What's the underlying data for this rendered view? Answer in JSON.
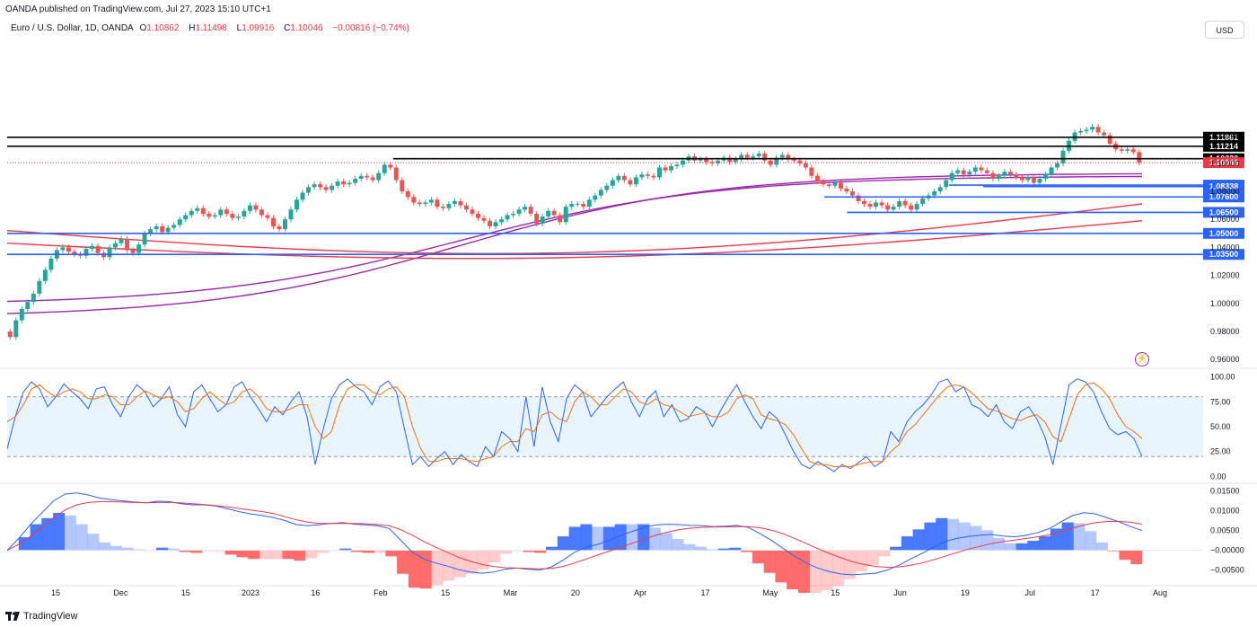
{
  "header": {
    "published": "OANDA published on TradingView.com, Jul 27, 2023 15:10 UTC+1"
  },
  "symbol": {
    "title": "Euro / U.S. Dollar, 1D, OANDA",
    "open_label": "O",
    "open": "1.10862",
    "high_label": "H",
    "high": "1.11498",
    "low_label": "L",
    "low": "1.09916",
    "close_label": "C",
    "close": "1.10046",
    "change": "−0.00816 (−0.74%)"
  },
  "currency_button": "USD",
  "footer": {
    "brand": "TradingView"
  },
  "colors": {
    "up": "#26a69a",
    "down": "#ef5350",
    "level_black": "#000000",
    "level_blue": "#2962ff",
    "ma_purple": "#9c27b0",
    "ma_red": "#f23645",
    "k_line": "#2962ff",
    "d_line": "#ff6d00",
    "hist_blue": "#2962ff",
    "hist_red": "#ff5252"
  },
  "chart_data": [
    {
      "type": "line",
      "name": "price",
      "ylim": [
        0.955,
        1.205
      ],
      "y_ticks": [
        "0.96000",
        "0.98000",
        "1.00000",
        "1.02000",
        "1.04000",
        "1.06000",
        "1.08000",
        "1.10000",
        "1.12000"
      ],
      "x_ticks": [
        "15",
        "Dec",
        "15",
        "2023",
        "16",
        "Feb",
        "15",
        "Mar",
        "20",
        "Apr",
        "17",
        "May",
        "15",
        "Jun",
        "19",
        "Jul",
        "17",
        "Aug"
      ],
      "close": [
        0.976,
        0.988,
        0.996,
        1.001,
        1.007,
        1.016,
        1.024,
        1.032,
        1.038,
        1.04,
        1.037,
        1.035,
        1.034,
        1.039,
        1.041,
        1.036,
        1.033,
        1.04,
        1.043,
        1.046,
        1.038,
        1.036,
        1.042,
        1.05,
        1.053,
        1.055,
        1.051,
        1.054,
        1.056,
        1.06,
        1.063,
        1.066,
        1.068,
        1.064,
        1.062,
        1.063,
        1.067,
        1.064,
        1.061,
        1.062,
        1.066,
        1.07,
        1.067,
        1.063,
        1.061,
        1.055,
        1.053,
        1.06,
        1.067,
        1.074,
        1.079,
        1.083,
        1.085,
        1.083,
        1.081,
        1.084,
        1.087,
        1.085,
        1.086,
        1.089,
        1.091,
        1.09,
        1.088,
        1.093,
        1.099,
        1.097,
        1.088,
        1.08,
        1.076,
        1.072,
        1.071,
        1.072,
        1.074,
        1.069,
        1.068,
        1.071,
        1.073,
        1.07,
        1.067,
        1.064,
        1.061,
        1.059,
        1.055,
        1.058,
        1.06,
        1.063,
        1.064,
        1.067,
        1.069,
        1.064,
        1.057,
        1.062,
        1.066,
        1.063,
        1.058,
        1.069,
        1.071,
        1.071,
        1.069,
        1.074,
        1.077,
        1.081,
        1.084,
        1.088,
        1.091,
        1.088,
        1.085,
        1.09,
        1.092,
        1.091,
        1.09,
        1.097,
        1.095,
        1.098,
        1.099,
        1.102,
        1.105,
        1.102,
        1.103,
        1.101,
        1.1,
        1.102,
        1.104,
        1.101,
        1.103,
        1.106,
        1.104,
        1.105,
        1.107,
        1.102,
        1.099,
        1.104,
        1.106,
        1.103,
        1.102,
        1.1,
        1.097,
        1.091,
        1.087,
        1.085,
        1.084,
        1.086,
        1.082,
        1.08,
        1.077,
        1.073,
        1.071,
        1.069,
        1.072,
        1.07,
        1.067,
        1.069,
        1.073,
        1.07,
        1.067,
        1.071,
        1.075,
        1.077,
        1.08,
        1.083,
        1.088,
        1.093,
        1.095,
        1.092,
        1.094,
        1.097,
        1.095,
        1.093,
        1.089,
        1.091,
        1.094,
        1.092,
        1.09,
        1.088,
        1.09,
        1.086,
        1.089,
        1.092,
        1.097,
        1.1,
        1.109,
        1.116,
        1.122,
        1.123,
        1.124,
        1.126,
        1.122,
        1.12,
        1.114,
        1.11,
        1.109,
        1.11,
        1.108,
        1.1005
      ],
      "moving_averages": [
        {
          "color": "#9c27b0",
          "start": 0.99,
          "end": 1.093,
          "shape": "rise"
        },
        {
          "color": "#9c27b0",
          "start": 0.999,
          "end": 1.091,
          "shape": "rise"
        },
        {
          "color": "#f23645",
          "start": 1.052,
          "end": 1.071,
          "shape": "dip"
        },
        {
          "color": "#f23645",
          "start": 1.043,
          "end": 1.059,
          "shape": "dip"
        }
      ],
      "levels": [
        {
          "value": 1.11861,
          "label": "1.11861",
          "color": "#000000",
          "from": 0.0
        },
        {
          "value": 1.11214,
          "label": "1.11214",
          "color": "#000000",
          "from": 0.0
        },
        {
          "value": 1.1033,
          "label": "1.10330",
          "color": "#000000",
          "from": 0.34
        },
        {
          "value": 1.10046,
          "label": "1.10046",
          "color": "#f23645",
          "from": 0.0,
          "dotted": true
        },
        {
          "value": 1.08444,
          "label": "1.08444",
          "color": "#2962ff",
          "from": 0.83
        },
        {
          "value": 1.08338,
          "label": "1.08338",
          "color": "#2962ff",
          "from": 0.86
        },
        {
          "value": 1.076,
          "label": "1.07600",
          "color": "#2962ff",
          "from": 0.72
        },
        {
          "value": 1.065,
          "label": "1.06500",
          "color": "#2962ff",
          "from": 0.74
        },
        {
          "value": 1.05,
          "label": "1.05000",
          "color": "#2962ff",
          "from": 0.0
        },
        {
          "value": 1.035,
          "label": "1.03500",
          "color": "#2962ff",
          "from": 0.0
        }
      ]
    },
    {
      "type": "line",
      "name": "stochastic",
      "ylim": [
        -5,
        105
      ],
      "y_ticks": [
        "100.00",
        "75.00",
        "50.00",
        "25.00",
        "0.00"
      ],
      "bands": [
        80,
        20
      ],
      "k": [
        28,
        60,
        85,
        95,
        88,
        70,
        80,
        93,
        85,
        78,
        68,
        88,
        90,
        72,
        60,
        80,
        92,
        85,
        70,
        78,
        90,
        62,
        50,
        85,
        92,
        78,
        65,
        72,
        90,
        95,
        80,
        68,
        55,
        70,
        62,
        75,
        85,
        60,
        12,
        48,
        78,
        92,
        98,
        90,
        85,
        72,
        90,
        96,
        85,
        48,
        12,
        20,
        10,
        18,
        25,
        12,
        22,
        15,
        10,
        30,
        20,
        45,
        38,
        25,
        80,
        30,
        90,
        55,
        35,
        78,
        92,
        85,
        60,
        70,
        80,
        88,
        95,
        75,
        60,
        78,
        86,
        60,
        72,
        55,
        58,
        70,
        65,
        50,
        66,
        80,
        92,
        75,
        60,
        48,
        65,
        58,
        42,
        25,
        12,
        8,
        15,
        10,
        5,
        12,
        8,
        14,
        20,
        10,
        15,
        45,
        35,
        55,
        65,
        72,
        82,
        95,
        98,
        85,
        90,
        72,
        68,
        60,
        72,
        55,
        48,
        65,
        70,
        58,
        40,
        12,
        52,
        92,
        98,
        95,
        85,
        65,
        48,
        42,
        45,
        38,
        20
      ],
      "d": [
        55,
        60,
        72,
        88,
        92,
        85,
        80,
        85,
        88,
        85,
        78,
        78,
        82,
        80,
        72,
        72,
        80,
        86,
        82,
        78,
        80,
        75,
        65,
        68,
        78,
        85,
        78,
        72,
        75,
        85,
        88,
        80,
        68,
        65,
        65,
        68,
        72,
        72,
        50,
        38,
        45,
        72,
        88,
        92,
        92,
        85,
        82,
        88,
        90,
        80,
        50,
        28,
        15,
        15,
        18,
        18,
        18,
        16,
        15,
        18,
        20,
        30,
        35,
        35,
        48,
        45,
        62,
        65,
        58,
        55,
        75,
        85,
        80,
        72,
        72,
        80,
        88,
        85,
        75,
        72,
        78,
        72,
        70,
        65,
        60,
        62,
        64,
        60,
        60,
        65,
        78,
        82,
        78,
        62,
        58,
        56,
        52,
        42,
        28,
        15,
        12,
        12,
        10,
        10,
        10,
        12,
        14,
        15,
        15,
        25,
        32,
        45,
        52,
        62,
        72,
        82,
        90,
        92,
        90,
        84,
        76,
        68,
        66,
        62,
        58,
        56,
        60,
        62,
        55,
        40,
        35,
        58,
        82,
        92,
        94,
        88,
        78,
        62,
        50,
        45,
        38
      ]
    },
    {
      "type": "line",
      "name": "macd",
      "ylim": [
        -0.0085,
        0.0165
      ],
      "y_ticks": [
        "0.01500",
        "0.01000",
        "0.00500",
        "−0.00000",
        "−0.00500"
      ],
      "macd": [
        0.0,
        0.003,
        0.0065,
        0.0095,
        0.0125,
        0.0142,
        0.0145,
        0.014,
        0.0132,
        0.0128,
        0.0125,
        0.0122,
        0.012,
        0.0124,
        0.0123,
        0.0118,
        0.0115,
        0.0115,
        0.0112,
        0.0105,
        0.0098,
        0.0092,
        0.0088,
        0.0083,
        0.0075,
        0.0065,
        0.0062,
        0.0065,
        0.0068,
        0.007,
        0.0066,
        0.0064,
        0.0062,
        0.0055,
        0.0025,
        -0.0005,
        -0.0022,
        -0.0032,
        -0.004,
        -0.0049,
        -0.0055,
        -0.0058,
        -0.0055,
        -0.0048,
        -0.0045,
        -0.0048,
        -0.005,
        -0.0042,
        -0.0025,
        -0.0005,
        0.0008,
        0.0015,
        0.0025,
        0.0038,
        0.0048,
        0.0058,
        0.0064,
        0.0066,
        0.0065,
        0.0063,
        0.0062,
        0.006,
        0.0061,
        0.0063,
        0.0058,
        0.0042,
        0.0025,
        0.0005,
        -0.0015,
        -0.0032,
        -0.0045,
        -0.0054,
        -0.006,
        -0.0062,
        -0.006,
        -0.0058,
        -0.005,
        -0.0038,
        -0.0022,
        -0.0008,
        0.0008,
        0.0022,
        0.003,
        0.0035,
        0.0038,
        0.004,
        0.0036,
        0.0034,
        0.0038,
        0.0045,
        0.0055,
        0.0072,
        0.0088,
        0.0095,
        0.0092,
        0.0082,
        0.0072,
        0.006,
        0.005
      ],
      "signal": [
        0.0,
        0.0015,
        0.0035,
        0.0058,
        0.0082,
        0.0102,
        0.0115,
        0.0121,
        0.0123,
        0.0123,
        0.0122,
        0.0121,
        0.012,
        0.0121,
        0.0121,
        0.012,
        0.0118,
        0.0116,
        0.0113,
        0.011,
        0.0106,
        0.0102,
        0.0098,
        0.0093,
        0.0085,
        0.0077,
        0.0071,
        0.0068,
        0.0068,
        0.0068,
        0.0068,
        0.0067,
        0.0065,
        0.0062,
        0.0052,
        0.0038,
        0.0022,
        0.0008,
        -0.0005,
        -0.0018,
        -0.0028,
        -0.0036,
        -0.0041,
        -0.0044,
        -0.0045,
        -0.0046,
        -0.0047,
        -0.0046,
        -0.0041,
        -0.0032,
        -0.0022,
        -0.0012,
        -0.0002,
        0.0008,
        0.0018,
        0.0028,
        0.0038,
        0.0046,
        0.0052,
        0.0056,
        0.0058,
        0.0059,
        0.0059,
        0.006,
        0.006,
        0.0057,
        0.0051,
        0.0042,
        0.003,
        0.0017,
        0.0004,
        -0.0008,
        -0.0019,
        -0.0029,
        -0.0036,
        -0.0041,
        -0.0043,
        -0.0042,
        -0.0038,
        -0.0032,
        -0.0024,
        -0.0015,
        -0.0006,
        0.0003,
        0.001,
        0.0017,
        0.0022,
        0.0026,
        0.003,
        0.0034,
        0.0039,
        0.0047,
        0.0056,
        0.0064,
        0.007,
        0.0073,
        0.0073,
        0.0071,
        0.0066
      ]
    }
  ]
}
